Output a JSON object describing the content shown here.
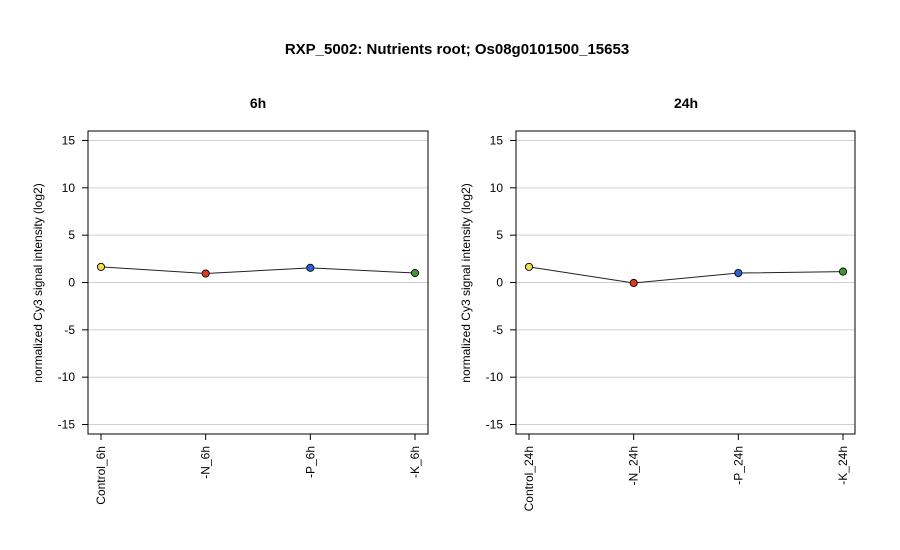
{
  "title": "RXP_5002: Nutrients root; Os08g0101500_15653",
  "chart_data": [
    {
      "type": "line",
      "title": "6h",
      "ylabel": "normalized Cy3 signal intensity (log2)",
      "xlabel": "",
      "ylim": [
        -16,
        16
      ],
      "yticks": [
        -15,
        -10,
        -5,
        0,
        5,
        10,
        15
      ],
      "grid": true,
      "categories": [
        "Control_6h",
        "-N_6h",
        "-P_6h",
        "-K_6h"
      ],
      "values": [
        1.65,
        0.95,
        1.55,
        1.0
      ],
      "point_colors": [
        "#f0e04a",
        "#e03a1e",
        "#2a63d8",
        "#3a9a2a"
      ]
    },
    {
      "type": "line",
      "title": "24h",
      "ylabel": "normalized Cy3 signal intensity (log2)",
      "xlabel": "",
      "ylim": [
        -16,
        16
      ],
      "yticks": [
        -15,
        -10,
        -5,
        0,
        5,
        10,
        15
      ],
      "grid": true,
      "categories": [
        "Control_24h",
        "-N_24h",
        "-P_24h",
        "-K_24h"
      ],
      "values": [
        1.65,
        -0.05,
        1.0,
        1.15
      ],
      "point_colors": [
        "#f0e04a",
        "#e03a1e",
        "#2a63d8",
        "#3a9a2a"
      ]
    }
  ]
}
